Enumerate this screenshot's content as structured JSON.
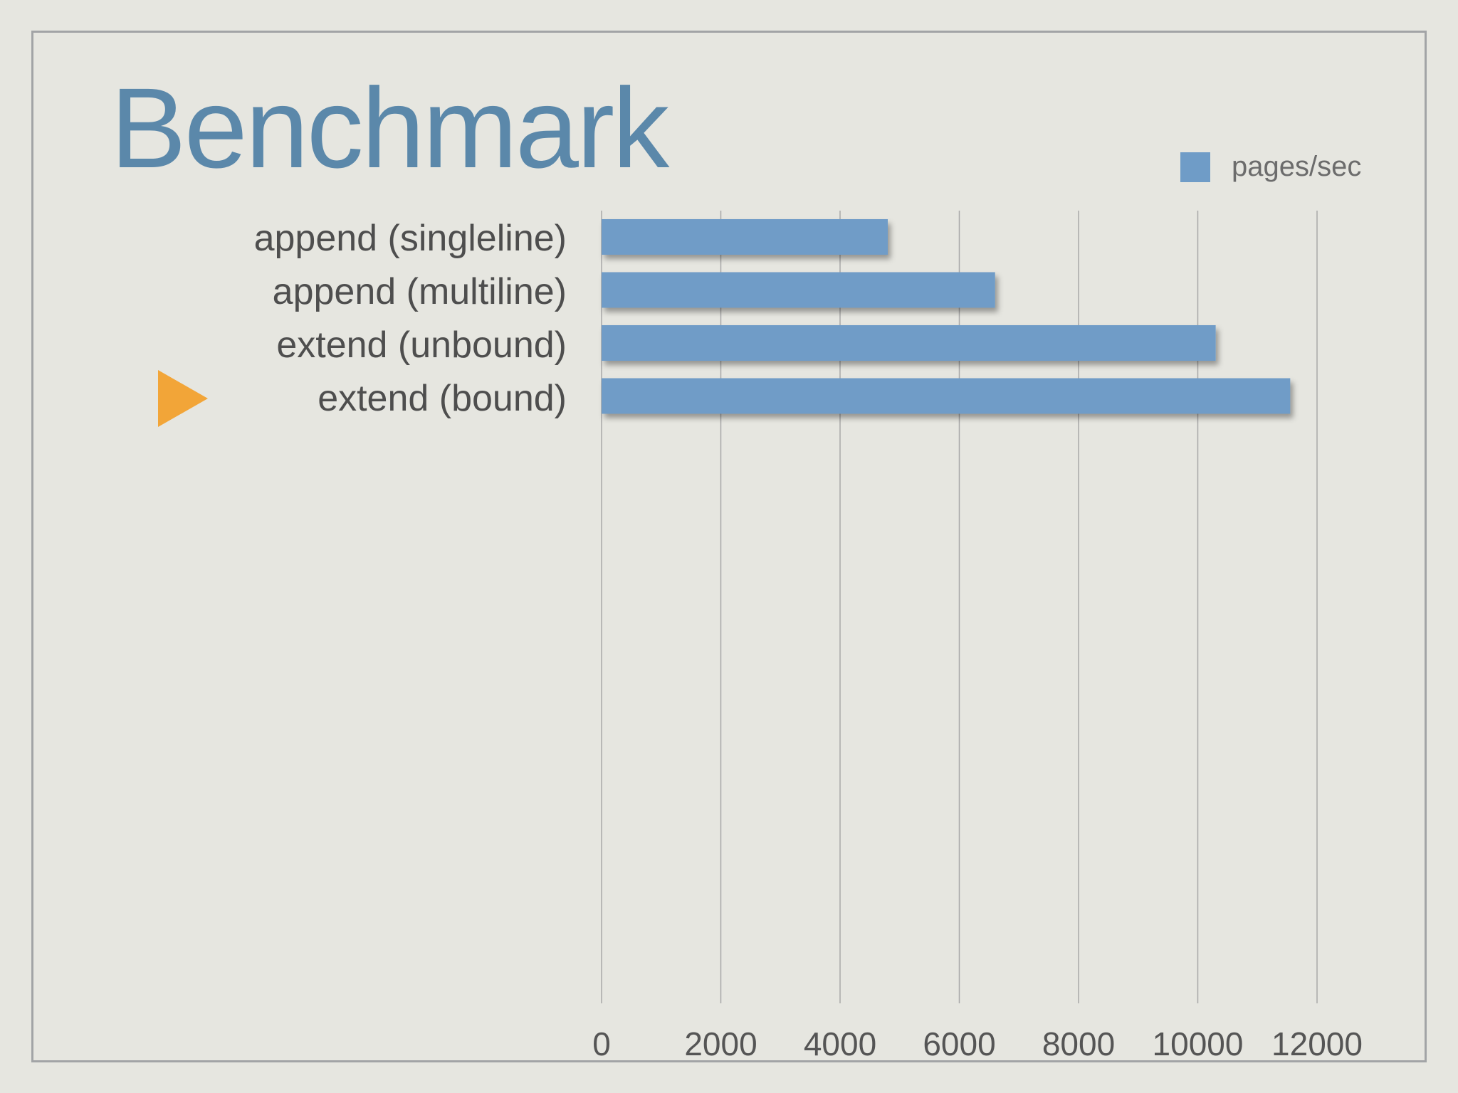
{
  "slide": {
    "title": "Benchmark",
    "colors": {
      "title": "#5b88aa",
      "bar": "#6f9cc7",
      "marker": "#f2a538",
      "frame": "#a2a4a6"
    },
    "marker_icon": "orange-triangle-icon",
    "highlighted_category": "extend (bound)"
  },
  "chart_data": {
    "type": "bar",
    "orientation": "horizontal",
    "title": "Benchmark",
    "categories": [
      "append (singleline)",
      "append (multiline)",
      "extend (unbound)",
      "extend (bound)"
    ],
    "series": [
      {
        "name": "pages/sec",
        "values": [
          4800,
          6600,
          10300,
          11550
        ]
      }
    ],
    "xlim": [
      0,
      12000
    ],
    "x_ticks": [
      "0",
      "2000",
      "4000",
      "6000",
      "8000",
      "10000",
      "12000"
    ],
    "grid": true,
    "legend": "top-right"
  }
}
